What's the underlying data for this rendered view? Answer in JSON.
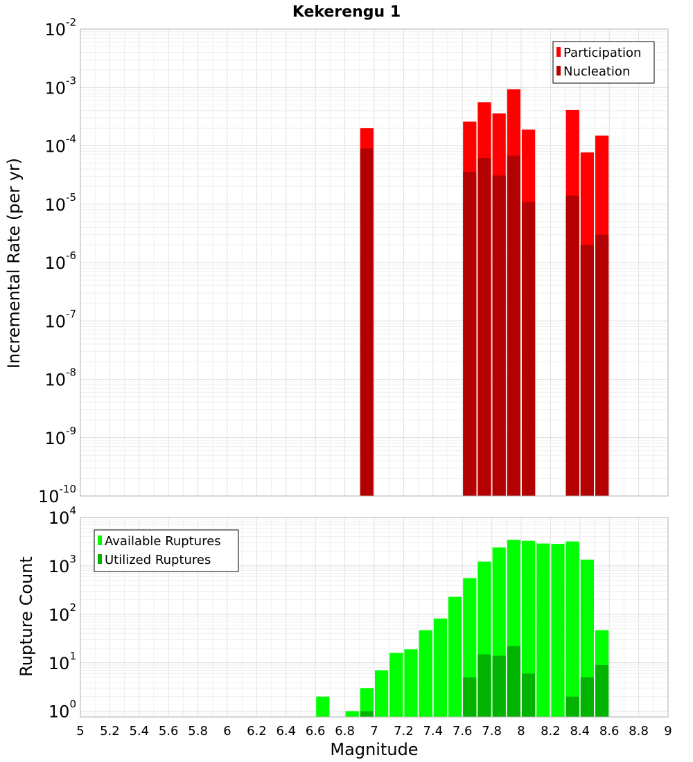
{
  "chart_data": [
    {
      "type": "bar",
      "title": "Kekerengu 1",
      "ylabel": "Incremental Rate (per yr)",
      "xlabel": "",
      "xlim": [
        5,
        9
      ],
      "ylim": [
        1e-10,
        0.01
      ],
      "yscale": "log",
      "y_tick_exponents": [
        -10,
        -9,
        -8,
        -7,
        -6,
        -5,
        -4,
        -3,
        -2
      ],
      "grid": true,
      "legend_position": "top-right",
      "bar_width": 0.1,
      "series": [
        {
          "name": "Participation",
          "color": "#ff0000",
          "x": [
            6.95,
            7.65,
            7.75,
            7.85,
            7.95,
            8.05,
            8.35,
            8.45,
            8.55
          ],
          "values": [
            0.0002,
            0.00026,
            0.00056,
            0.00036,
            0.00093,
            0.00019,
            0.00041,
            7.7e-05,
            0.00015
          ]
        },
        {
          "name": "Nucleation",
          "color": "#b30000",
          "x": [
            6.95,
            7.65,
            7.75,
            7.85,
            7.95,
            8.05,
            8.35,
            8.45,
            8.55
          ],
          "values": [
            9e-05,
            3.6e-05,
            6.2e-05,
            3.1e-05,
            6.8e-05,
            1.1e-05,
            1.4e-05,
            2e-06,
            3e-06
          ]
        }
      ]
    },
    {
      "type": "bar",
      "title": "",
      "ylabel": "Rupture Count",
      "xlabel": "Magnitude",
      "xlim": [
        5,
        9
      ],
      "ylim": [
        0.76,
        10000
      ],
      "yscale": "log",
      "y_tick_exponents": [
        0,
        1,
        2,
        3,
        4
      ],
      "x_ticks": [
        5,
        5.2,
        5.4,
        5.6,
        5.8,
        6,
        6.2,
        6.4,
        6.6,
        6.8,
        7,
        7.2,
        7.4,
        7.6,
        7.8,
        8,
        8.2,
        8.4,
        8.6,
        8.8,
        9
      ],
      "x_tick_labels": [
        "5",
        "5.2",
        "5.4",
        "5.6",
        "5.8",
        "6",
        "6.2",
        "6.4",
        "6.6",
        "6.8",
        "7",
        "7.2",
        "7.4",
        "7.6",
        "7.8",
        "8",
        "8.2",
        "8.4",
        "8.6",
        "8.8",
        "9"
      ],
      "grid": true,
      "legend_position": "top-left",
      "bar_width": 0.1,
      "series": [
        {
          "name": "Available Ruptures",
          "color": "#00ff00",
          "x": [
            6.65,
            6.85,
            6.95,
            7.05,
            7.15,
            7.25,
            7.35,
            7.45,
            7.55,
            7.65,
            7.75,
            7.85,
            7.95,
            8.05,
            8.15,
            8.25,
            8.35,
            8.45,
            8.55
          ],
          "values": [
            2,
            1,
            3,
            7,
            16,
            19,
            47,
            82,
            230,
            560,
            1230,
            2400,
            3450,
            3300,
            2900,
            2850,
            3200,
            1350,
            47
          ]
        },
        {
          "name": "Utilized Ruptures",
          "color": "#00b300",
          "x": [
            6.95,
            7.65,
            7.75,
            7.85,
            7.95,
            8.05,
            8.35,
            8.45,
            8.55
          ],
          "values": [
            1,
            5,
            15,
            14,
            22,
            6,
            2,
            5,
            9
          ]
        }
      ]
    }
  ]
}
